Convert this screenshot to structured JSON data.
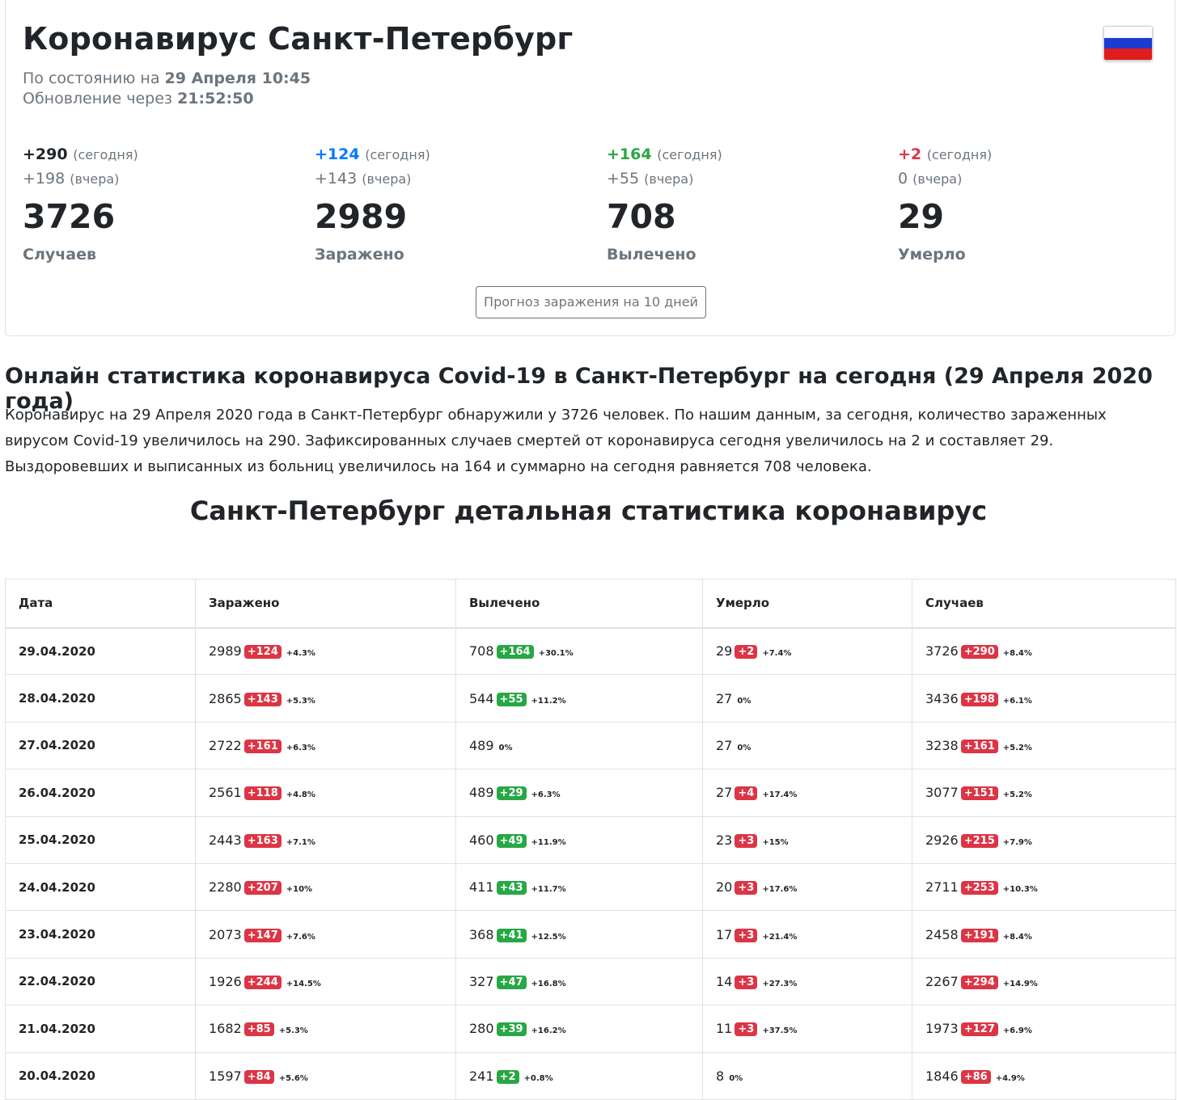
{
  "header": {
    "title": "Коронавирус Санкт-Петербург",
    "status_prefix": "По состоянию на",
    "status_date": "29 Апреля 10:45",
    "update_prefix": "Обновление через",
    "update_timer": "21:52:50"
  },
  "colors": {
    "red": "#dc3545",
    "green": "#28a745",
    "blue": "#007bff",
    "muted": "#6c757d",
    "flag_white": "#ffffff",
    "flag_blue": "#1d3bd1",
    "flag_red": "#e01c1c"
  },
  "stats": [
    {
      "today": "+290",
      "today_tag": "(сегодня)",
      "yesterday": "+198",
      "yesterday_tag": "(вчера)",
      "total": "3726",
      "label": "Случаев",
      "color": "#212529"
    },
    {
      "today": "+124",
      "today_tag": "(сегодня)",
      "yesterday": "+143",
      "yesterday_tag": "(вчера)",
      "total": "2989",
      "label": "Заражено",
      "color": "#007bff"
    },
    {
      "today": "+164",
      "today_tag": "(сегодня)",
      "yesterday": "+55",
      "yesterday_tag": "(вчера)",
      "total": "708",
      "label": "Вылечено",
      "color": "#28a745"
    },
    {
      "today": "+2",
      "today_tag": "(сегодня)",
      "yesterday": "0",
      "yesterday_tag": "(вчера)",
      "total": "29",
      "label": "Умерло",
      "color": "#dc3545"
    }
  ],
  "forecast_button": "Прогноз заражения на 10 дней",
  "online_title": "Онлайн статистика коронавируса Covid-19 в Санкт-Петербург на сегодня (29 Апреля 2020 года)",
  "paragraph": "Коронавирус на 29 Апреля 2020 года в Санкт-Петербург обнаружили у 3726 человек. По нашим данным, за сегодня, количество зараженных вирусом Covid-19 увеличилось на 290. Зафиксированных случаев смертей от коронавируса сегодня увеличилось на 2 и составляет 29. Выздоровевших и выписанных из больниц увеличилось на 164 и суммарно на сегодня равняется 708 человека.",
  "detail_title": "Санкт-Петербург детальная статистика коронавирус",
  "table": {
    "headers": [
      "Дата",
      "Заражено",
      "Вылечено",
      "Умерло",
      "Случаев"
    ],
    "rows": [
      {
        "date": "29.04.2020",
        "inf": [
          "2989",
          "+124",
          "+4.3%"
        ],
        "rec": [
          "708",
          "+164",
          "+30.1%"
        ],
        "dead": [
          "29",
          "+2",
          "+7.4%"
        ],
        "cases": [
          "3726",
          "+290",
          "+8.4%"
        ]
      },
      {
        "date": "28.04.2020",
        "inf": [
          "2865",
          "+143",
          "+5.3%"
        ],
        "rec": [
          "544",
          "+55",
          "+11.2%"
        ],
        "dead": [
          "27",
          "",
          "0%"
        ],
        "cases": [
          "3436",
          "+198",
          "+6.1%"
        ]
      },
      {
        "date": "27.04.2020",
        "inf": [
          "2722",
          "+161",
          "+6.3%"
        ],
        "rec": [
          "489",
          "",
          "0%"
        ],
        "dead": [
          "27",
          "",
          "0%"
        ],
        "cases": [
          "3238",
          "+161",
          "+5.2%"
        ]
      },
      {
        "date": "26.04.2020",
        "inf": [
          "2561",
          "+118",
          "+4.8%"
        ],
        "rec": [
          "489",
          "+29",
          "+6.3%"
        ],
        "dead": [
          "27",
          "+4",
          "+17.4%"
        ],
        "cases": [
          "3077",
          "+151",
          "+5.2%"
        ]
      },
      {
        "date": "25.04.2020",
        "inf": [
          "2443",
          "+163",
          "+7.1%"
        ],
        "rec": [
          "460",
          "+49",
          "+11.9%"
        ],
        "dead": [
          "23",
          "+3",
          "+15%"
        ],
        "cases": [
          "2926",
          "+215",
          "+7.9%"
        ]
      },
      {
        "date": "24.04.2020",
        "inf": [
          "2280",
          "+207",
          "+10%"
        ],
        "rec": [
          "411",
          "+43",
          "+11.7%"
        ],
        "dead": [
          "20",
          "+3",
          "+17.6%"
        ],
        "cases": [
          "2711",
          "+253",
          "+10.3%"
        ]
      },
      {
        "date": "23.04.2020",
        "inf": [
          "2073",
          "+147",
          "+7.6%"
        ],
        "rec": [
          "368",
          "+41",
          "+12.5%"
        ],
        "dead": [
          "17",
          "+3",
          "+21.4%"
        ],
        "cases": [
          "2458",
          "+191",
          "+8.4%"
        ]
      },
      {
        "date": "22.04.2020",
        "inf": [
          "1926",
          "+244",
          "+14.5%"
        ],
        "rec": [
          "327",
          "+47",
          "+16.8%"
        ],
        "dead": [
          "14",
          "+3",
          "+27.3%"
        ],
        "cases": [
          "2267",
          "+294",
          "+14.9%"
        ]
      },
      {
        "date": "21.04.2020",
        "inf": [
          "1682",
          "+85",
          "+5.3%"
        ],
        "rec": [
          "280",
          "+39",
          "+16.2%"
        ],
        "dead": [
          "11",
          "+3",
          "+37.5%"
        ],
        "cases": [
          "1973",
          "+127",
          "+6.9%"
        ]
      },
      {
        "date": "20.04.2020",
        "inf": [
          "1597",
          "+84",
          "+5.6%"
        ],
        "rec": [
          "241",
          "+2",
          "+0.8%"
        ],
        "dead": [
          "8",
          "",
          "0%"
        ],
        "cases": [
          "1846",
          "+86",
          "+4.9%"
        ]
      }
    ]
  }
}
